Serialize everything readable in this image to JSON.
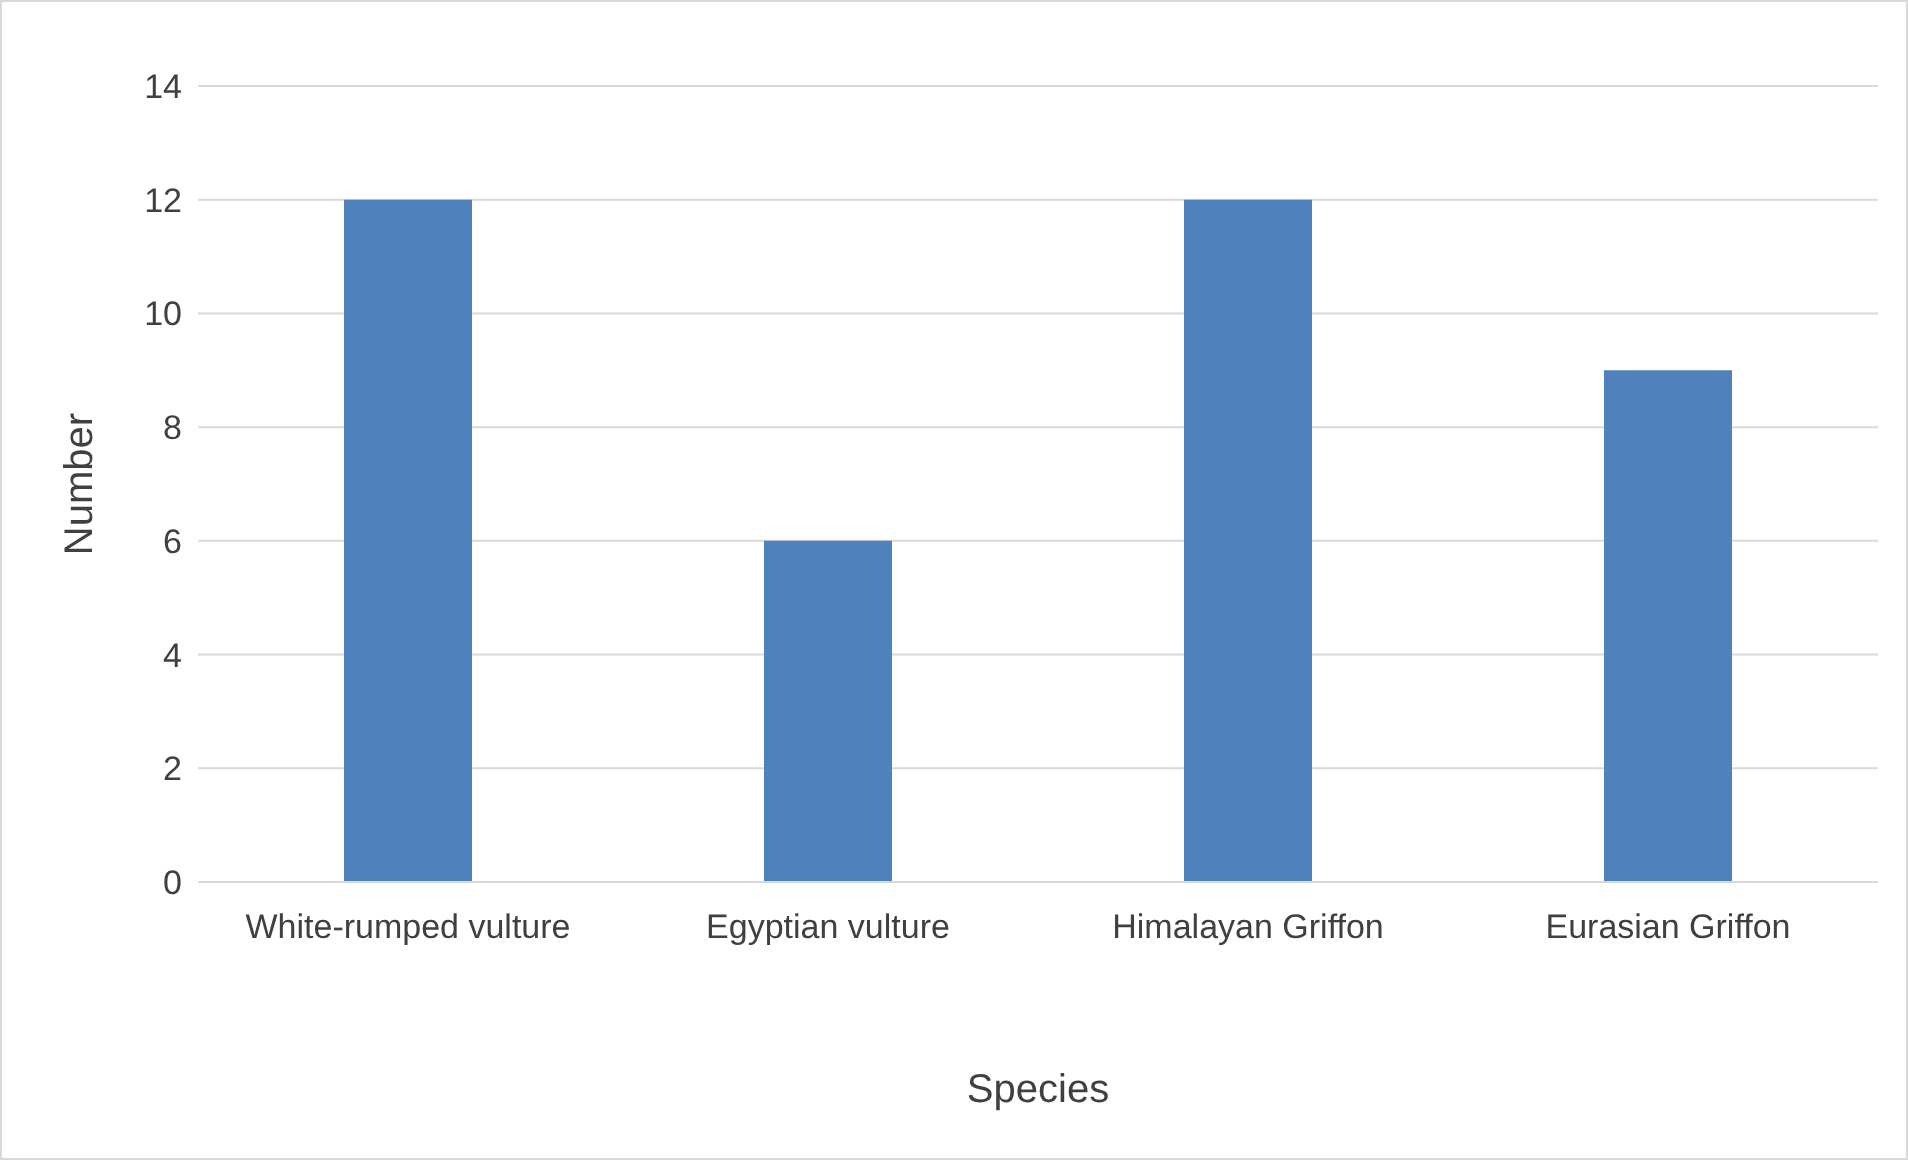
{
  "chart_data": {
    "type": "bar",
    "xlabel": "Species",
    "ylabel": "Number",
    "categories": [
      "White-rumped vulture",
      "Egyptian vulture",
      "Himalayan Griffon",
      "Eurasian Griffon"
    ],
    "values": [
      12,
      6,
      12,
      9
    ],
    "color": "#4f81bd",
    "ylim": [
      0,
      14
    ],
    "yticks": [
      0,
      2,
      4,
      6,
      8,
      10,
      12,
      14
    ],
    "grid": "y",
    "legend": false
  }
}
